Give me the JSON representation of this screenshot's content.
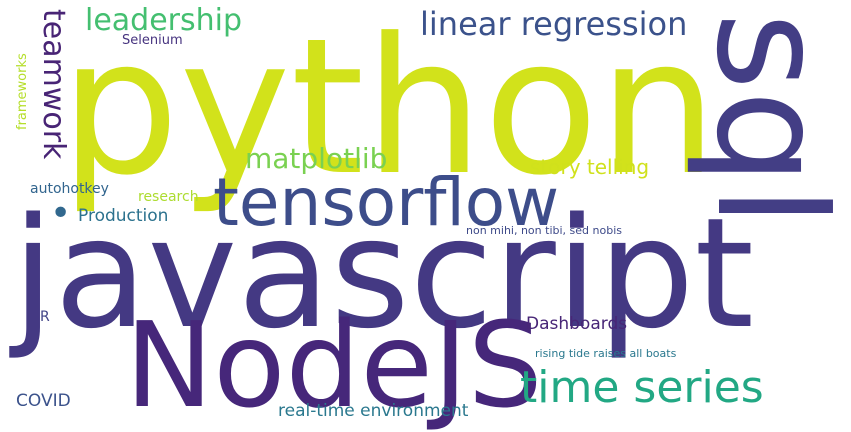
{
  "words": {
    "python": {
      "text": "python",
      "color": "#d2e21b"
    },
    "javascript": {
      "text": "javascript",
      "color": "#443983"
    },
    "nodejs": {
      "text": "NodeJS",
      "color": "#46277a"
    },
    "sql": {
      "text": "sql",
      "color": "#433e85"
    },
    "tensorflow": {
      "text": "tensorflow",
      "color": "#3d4d8a"
    },
    "time_series": {
      "text": "time series",
      "color": "#22a884"
    },
    "linear_regression": {
      "text": "linear regression",
      "color": "#3b528b"
    },
    "leadership": {
      "text": "leadership",
      "color": "#44bf70"
    },
    "teamwork": {
      "text": "teamwork",
      "color": "#482475"
    },
    "matplotlib": {
      "text": "matplotlib",
      "color": "#7ad151"
    },
    "story_telling": {
      "text": "story telling",
      "color": "#d0e11c"
    },
    "production": {
      "text": "Production",
      "color": "#2c728e"
    },
    "dashboards": {
      "text": "Dashboards",
      "color": "#482677"
    },
    "real_time_environment": {
      "text": "real-time environment",
      "color": "#2a788e"
    },
    "covid": {
      "text": "COVID",
      "color": "#3b528b"
    },
    "selenium": {
      "text": "Selenium",
      "color": "#46337f"
    },
    "frameworks": {
      "text": "frameworks",
      "color": "#b5de2b"
    },
    "autohotkey": {
      "text": "autohotkey",
      "color": "#32658e"
    },
    "research": {
      "text": "research",
      "color": "#addc30"
    },
    "r": {
      "text": "R",
      "color": "#414487"
    },
    "non_mihi": {
      "text": "non mihi, non tibi, sed nobis",
      "color": "#3e4a89"
    },
    "rising_tide": {
      "text": "rising tide raises all boats",
      "color": "#2a788e"
    },
    "dot": {
      "text": "•",
      "color": "#31688e"
    }
  }
}
